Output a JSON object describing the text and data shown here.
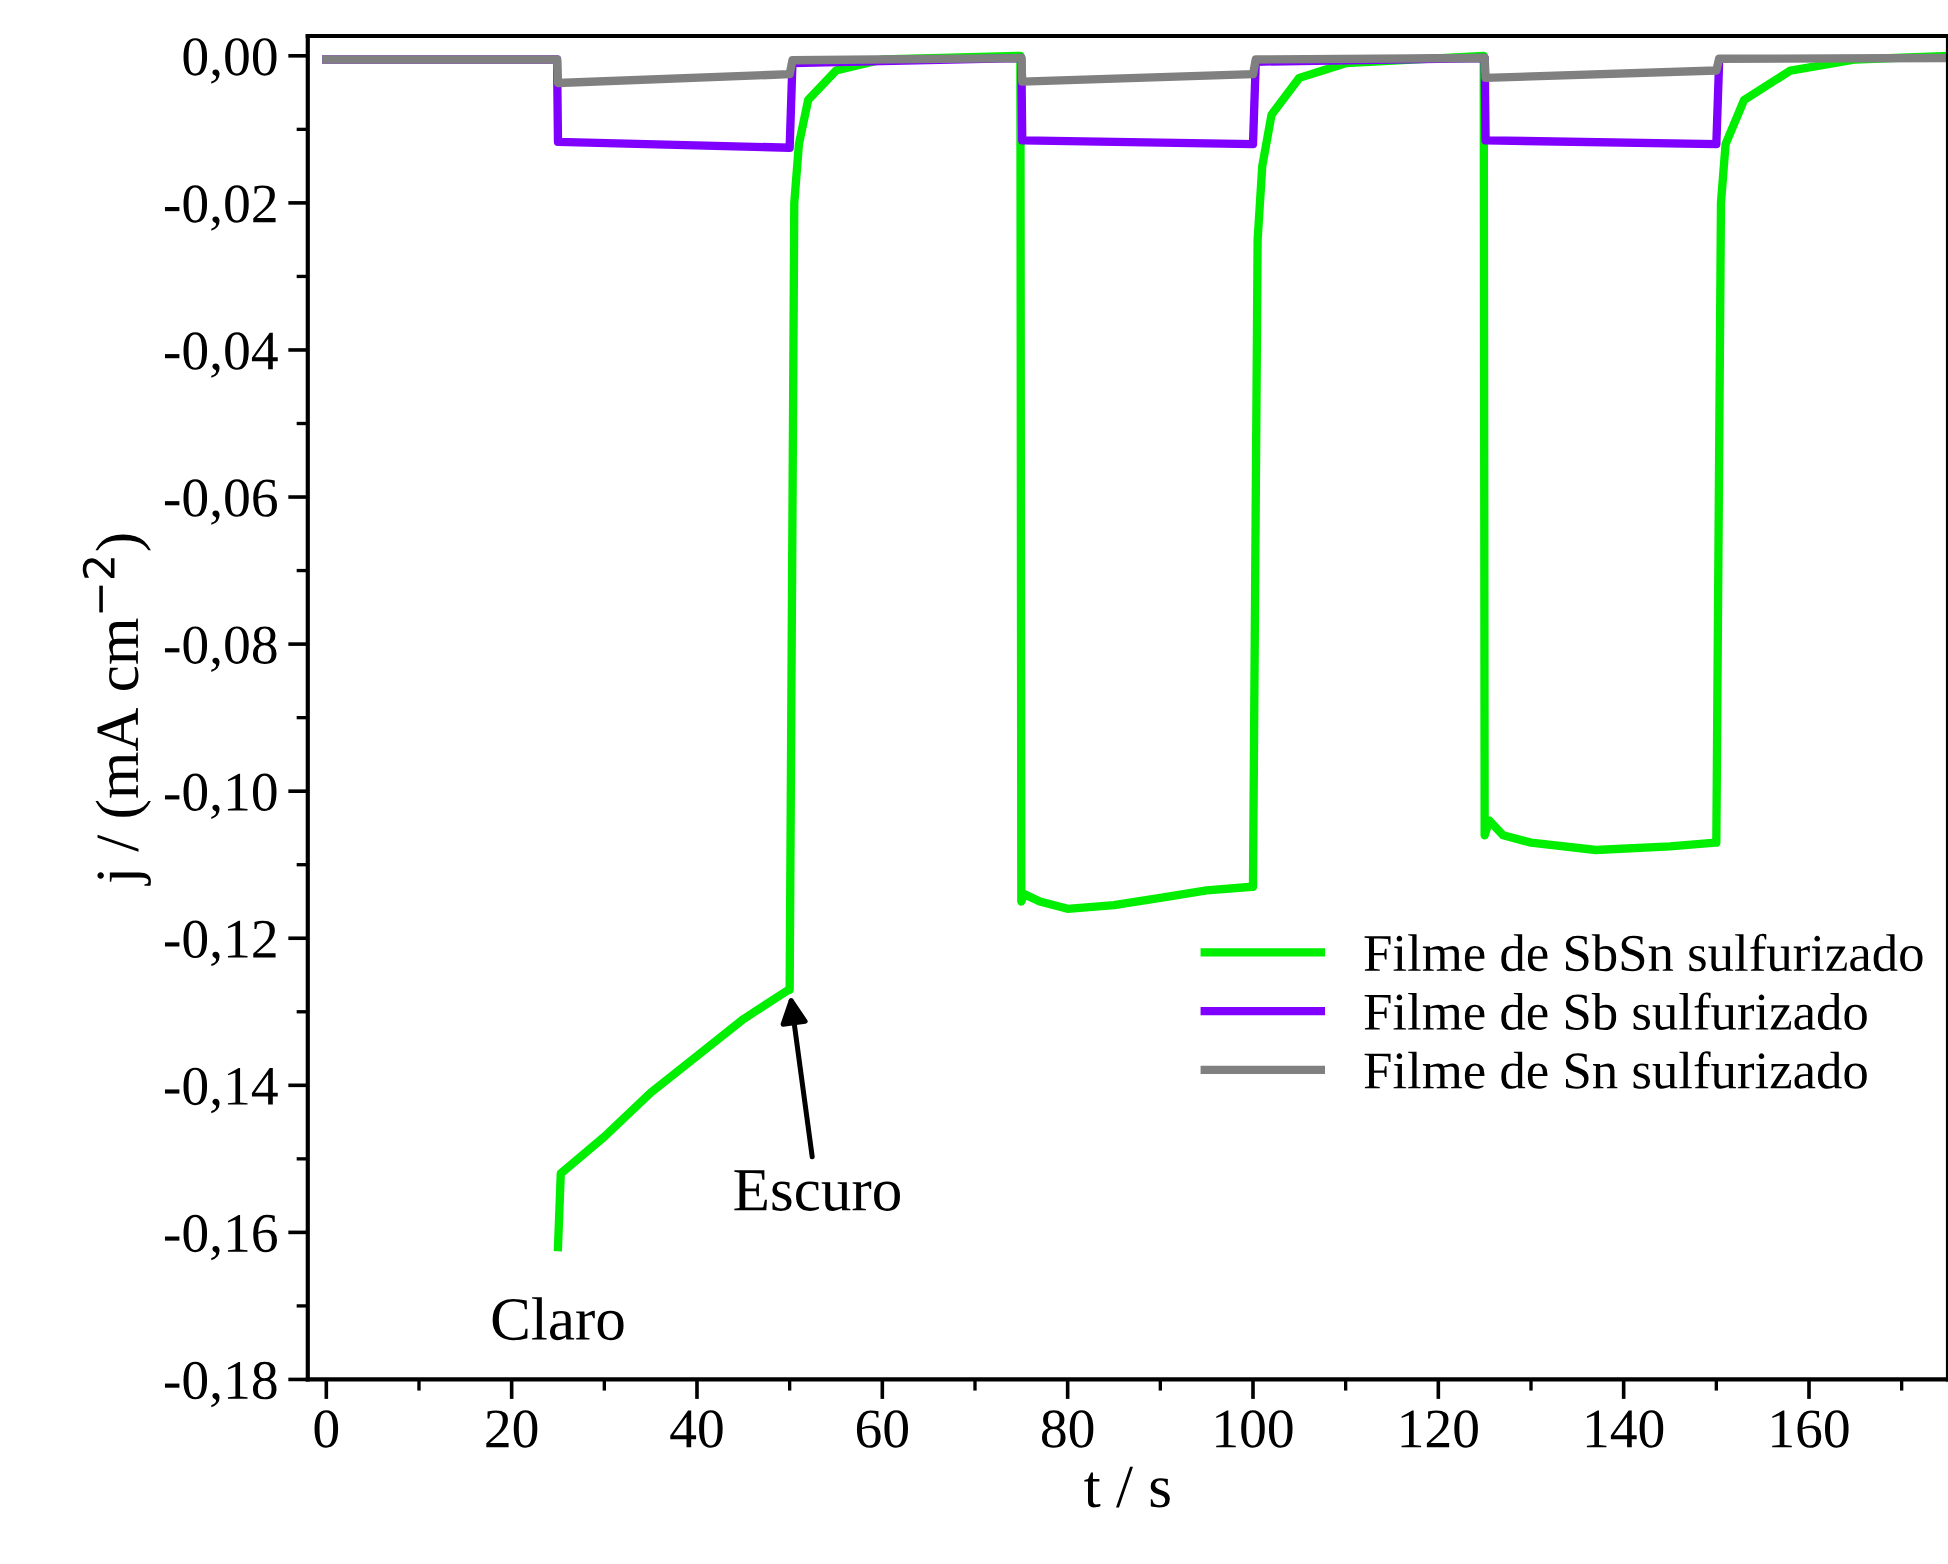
{
  "chart_data": {
    "type": "line",
    "xlabel": "t / s",
    "ylabel": "j / (mA cm$^{−2}$)",
    "xlim": [
      -2,
      175
    ],
    "ylim": [
      -0.18,
      0.0027
    ],
    "xticks": [
      0,
      20,
      40,
      60,
      80,
      100,
      120,
      140,
      160
    ],
    "yticks": [
      {
        "value": 0,
        "label": "0,00"
      },
      {
        "value": -0.02,
        "label": "-0,02"
      },
      {
        "value": -0.04,
        "label": "-0,04"
      },
      {
        "value": -0.06,
        "label": "-0,06"
      },
      {
        "value": -0.08,
        "label": "-0,08"
      },
      {
        "value": -0.1,
        "label": "-0,10"
      },
      {
        "value": -0.12,
        "label": "-0,12"
      },
      {
        "value": -0.14,
        "label": "-0,14"
      },
      {
        "value": -0.16,
        "label": "-0,16"
      },
      {
        "value": -0.18,
        "label": "-0,18"
      }
    ],
    "grid": false,
    "legend": "right",
    "marker": "none",
    "line_style": "solid",
    "annotations": [
      {
        "text": "Claro",
        "x": 25,
        "y": -0.162
      },
      {
        "text": "Escuro",
        "x": 50,
        "y": -0.127
      }
    ],
    "series": [
      {
        "name": "Filme de SbSn sulfurizado",
        "color": "#00ee00",
        "x": [
          25,
          25.3,
          30,
          35,
          40,
          45,
          49.9,
          50,
          50.5,
          51,
          52,
          55,
          60,
          74.9,
          75,
          75.3,
          77,
          80,
          85,
          90,
          95,
          99.9,
          100,
          100.5,
          101,
          102,
          105,
          110,
          124.9,
          125,
          125.5,
          127,
          130,
          137,
          145,
          149.9,
          150,
          150.5,
          151,
          153,
          158,
          165,
          175
        ],
        "values": [
          -0.162,
          -0.152,
          -0.147,
          -0.141,
          -0.136,
          -0.131,
          -0.127,
          -0.127,
          -0.02,
          -0.012,
          -0.006,
          -0.002,
          -0.0005,
          0,
          -0.115,
          -0.114,
          -0.115,
          -0.116,
          -0.1155,
          -0.1145,
          -0.1135,
          -0.113,
          -0.113,
          -0.025,
          -0.015,
          -0.008,
          -0.003,
          -0.001,
          0,
          -0.106,
          -0.104,
          -0.106,
          -0.107,
          -0.108,
          -0.1075,
          -0.107,
          -0.107,
          -0.02,
          -0.012,
          -0.006,
          -0.002,
          -0.0005,
          0
        ]
      },
      {
        "name": "Filme de Sb sulfurizado",
        "color": "#7f00ff",
        "x": [
          0,
          24.9,
          25,
          50,
          50.3,
          75,
          75.1,
          100,
          100.3,
          125,
          125.1,
          150,
          150.3
        ],
        "values": [
          -0.0005,
          -0.0005,
          -0.0117,
          -0.0125,
          -0.001,
          -0.0003,
          -0.0115,
          -0.012,
          -0.0008,
          -0.0003,
          -0.0115,
          -0.012,
          -0.0008
        ]
      },
      {
        "name": "Filme de Sn sulfurizado",
        "color": "#808080",
        "x": [
          0,
          24.9,
          25,
          50,
          50.3,
          75,
          75.1,
          100,
          100.3,
          125,
          125.1,
          150,
          150.3,
          175
        ],
        "values": [
          -0.0005,
          -0.0005,
          -0.0037,
          -0.0025,
          -0.0006,
          -0.0003,
          -0.0035,
          -0.0025,
          -0.0005,
          -0.0003,
          -0.003,
          -0.002,
          -0.0004,
          -0.0003
        ]
      }
    ]
  }
}
